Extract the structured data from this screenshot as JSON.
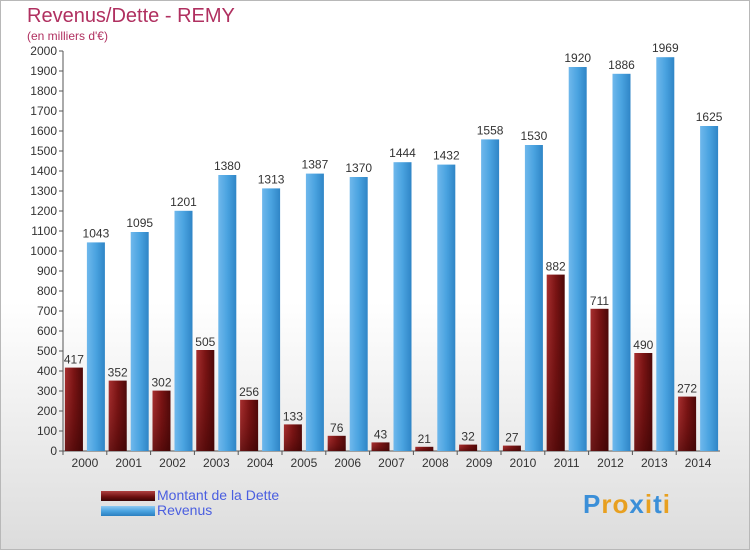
{
  "header": {
    "title": "Revenus/Dette - REMY",
    "subtitle": "(en milliers d'€)"
  },
  "legend": {
    "items": [
      {
        "label": "Montant de la Dette",
        "color": "#7a1414"
      },
      {
        "label": "Revenus",
        "color": "#4aa3e0"
      }
    ]
  },
  "brand": {
    "text": "Proxiti",
    "colors": [
      "#3b8fd8",
      "#e8a020",
      "#e8a020",
      "#3b8fd8",
      "#e8a020",
      "#3b8fd8",
      "#e8a020"
    ]
  },
  "chart_data": {
    "type": "bar",
    "categories": [
      "2000",
      "2001",
      "2002",
      "2003",
      "2004",
      "2005",
      "2006",
      "2007",
      "2008",
      "2009",
      "2010",
      "2011",
      "2012",
      "2013",
      "2014"
    ],
    "series": [
      {
        "name": "Montant de la Dette",
        "color": "#7a1414",
        "values": [
          417,
          352,
          302,
          505,
          256,
          133,
          76,
          43,
          21,
          32,
          27,
          882,
          711,
          490,
          272
        ]
      },
      {
        "name": "Revenus",
        "color": "#4aa3e0",
        "values": [
          1043,
          1095,
          1201,
          1380,
          1313,
          1387,
          1370,
          1444,
          1432,
          1558,
          1530,
          1920,
          1886,
          1969,
          1625
        ]
      }
    ],
    "ylim": [
      0,
      2000
    ],
    "ytick_step": 100,
    "grid": false,
    "legend_position": "bottom-left"
  }
}
